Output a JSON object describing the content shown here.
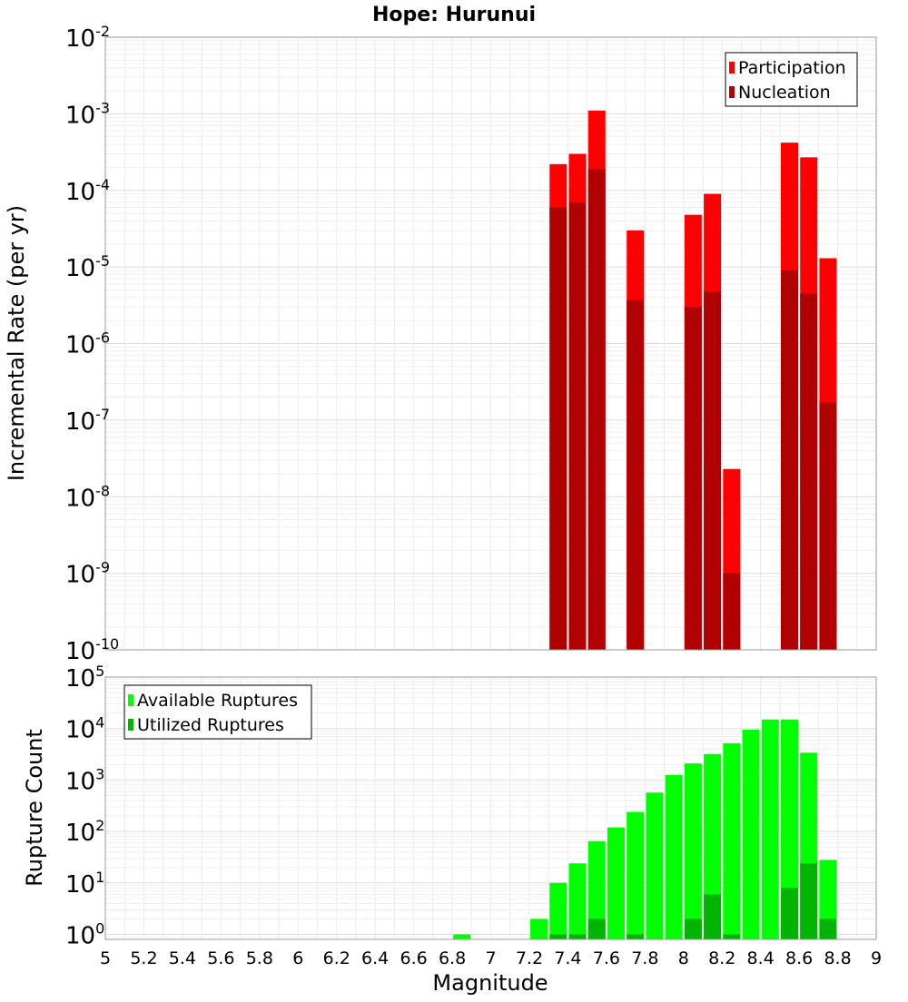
{
  "chart_data": [
    {
      "type": "bar",
      "title": "Hope: Hurunui",
      "xlabel": "",
      "ylabel": "Incremental Rate (per yr)",
      "yscale": "log",
      "xlim": [
        5,
        9
      ],
      "ylim": [
        1e-10,
        0.01
      ],
      "y_ticks": [
        {
          "base": "10",
          "exp": "-10",
          "value": 1e-10
        },
        {
          "base": "10",
          "exp": "-9",
          "value": 1e-09
        },
        {
          "base": "10",
          "exp": "-8",
          "value": 1e-08
        },
        {
          "base": "10",
          "exp": "-7",
          "value": 1e-07
        },
        {
          "base": "10",
          "exp": "-6",
          "value": 1e-06
        },
        {
          "base": "10",
          "exp": "-5",
          "value": 1e-05
        },
        {
          "base": "10",
          "exp": "-4",
          "value": 0.0001
        },
        {
          "base": "10",
          "exp": "-3",
          "value": 0.001
        },
        {
          "base": "10",
          "exp": "-2",
          "value": 0.01
        }
      ],
      "grid": true,
      "legend_position": "top-right",
      "series": [
        {
          "name": "Participation",
          "color": "#ff0000",
          "x": [
            7.35,
            7.45,
            7.55,
            7.75,
            8.05,
            8.15,
            8.25,
            8.55,
            8.65,
            8.75
          ],
          "values": [
            0.00022,
            0.0003,
            0.0011,
            3e-05,
            4.8e-05,
            9e-05,
            2.3e-08,
            0.00042,
            0.00027,
            1.3e-05
          ]
        },
        {
          "name": "Nucleation",
          "color": "#b00000",
          "x": [
            7.35,
            7.45,
            7.55,
            7.75,
            8.05,
            8.15,
            8.25,
            8.55,
            8.65,
            8.75
          ],
          "values": [
            6e-05,
            7e-05,
            0.00019,
            3.7e-06,
            3e-06,
            4.8e-06,
            1e-09,
            9e-06,
            4.5e-06,
            1.7e-07
          ]
        }
      ]
    },
    {
      "type": "bar",
      "title": "",
      "xlabel": "Magnitude",
      "ylabel": "Rupture Count",
      "yscale": "log",
      "xlim": [
        5,
        9
      ],
      "ylim": [
        0.8,
        100000.0
      ],
      "x_ticks": [
        "5",
        "5.2",
        "5.4",
        "5.6",
        "5.8",
        "6",
        "6.2",
        "6.4",
        "6.6",
        "6.8",
        "7",
        "7.2",
        "7.4",
        "7.6",
        "7.8",
        "8",
        "8.2",
        "8.4",
        "8.6",
        "8.8",
        "9"
      ],
      "y_ticks": [
        {
          "base": "10",
          "exp": "0",
          "value": 1
        },
        {
          "base": "10",
          "exp": "1",
          "value": 10
        },
        {
          "base": "10",
          "exp": "2",
          "value": 100
        },
        {
          "base": "10",
          "exp": "3",
          "value": 1000
        },
        {
          "base": "10",
          "exp": "4",
          "value": 10000
        },
        {
          "base": "10",
          "exp": "5",
          "value": 100000
        }
      ],
      "grid": true,
      "legend_position": "top-left",
      "series": [
        {
          "name": "Available Ruptures",
          "color": "#00ff00",
          "x": [
            6.85,
            7.25,
            7.35,
            7.45,
            7.55,
            7.65,
            7.75,
            7.85,
            7.95,
            8.05,
            8.15,
            8.25,
            8.35,
            8.45,
            8.55,
            8.65,
            8.75
          ],
          "values": [
            1,
            2,
            10,
            24,
            65,
            120,
            240,
            570,
            1250,
            2100,
            3200,
            5200,
            9500,
            15000,
            15000,
            3400,
            28
          ]
        },
        {
          "name": "Utilized Ruptures",
          "color": "#00b400",
          "x": [
            7.35,
            7.45,
            7.55,
            7.75,
            8.05,
            8.15,
            8.25,
            8.55,
            8.65,
            8.75
          ],
          "values": [
            1,
            1,
            2,
            1,
            2,
            6,
            1,
            8,
            24,
            2
          ]
        }
      ]
    }
  ]
}
